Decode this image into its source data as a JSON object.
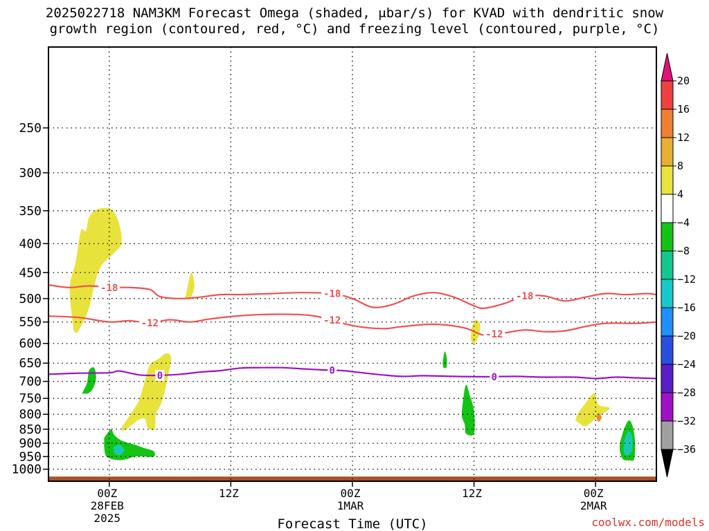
{
  "header": {
    "title_line1": "2025022718 NAM3KM Forecast Omega (shaded, μbar/s) for KVAD with dendritic snow",
    "title_line2": "growth region (contoured, red, °C) and freezing level (contoured, purple, °C)"
  },
  "footer": {
    "credit": "coolwx.com/models"
  },
  "chart_data": {
    "type": "time-height cross section",
    "title": "2025022718 NAM3KM Forecast Omega (shaded, μbar/s) for KVAD with dendritic snow growth region (contoured, red, °C) and freezing level (contoured, purple, °C)",
    "xlabel": "Forecast Time (UTC)",
    "ylabel": "",
    "x_range_hours": [
      -6,
      54
    ],
    "y_range_hpa": [
      1050,
      180
    ],
    "y_scale": "log-pressure",
    "grid": true,
    "x_ticks": [
      {
        "hour": 0,
        "lines": [
          "00Z",
          "28FEB",
          "2025"
        ]
      },
      {
        "hour": 12,
        "lines": [
          "12Z"
        ]
      },
      {
        "hour": 24,
        "lines": [
          "00Z",
          "1MAR"
        ]
      },
      {
        "hour": 36,
        "lines": [
          "12Z"
        ]
      },
      {
        "hour": 48,
        "lines": [
          "00Z",
          "2MAR"
        ]
      }
    ],
    "y_ticks": [
      250,
      300,
      350,
      400,
      450,
      500,
      550,
      600,
      650,
      700,
      750,
      800,
      850,
      900,
      950,
      1000
    ],
    "contours": [
      {
        "name": "-18",
        "color": "#f05050",
        "label": "-18",
        "labels_at_hours": [
          0,
          22,
          41
        ],
        "points": [
          [
            -6,
            473
          ],
          [
            -4,
            478
          ],
          [
            -2,
            475
          ],
          [
            0,
            478
          ],
          [
            2,
            478
          ],
          [
            4,
            482
          ],
          [
            5,
            496
          ],
          [
            7,
            500
          ],
          [
            9,
            497
          ],
          [
            11,
            492
          ],
          [
            13,
            492
          ],
          [
            16,
            490
          ],
          [
            19,
            488
          ],
          [
            22,
            490
          ],
          [
            24,
            500
          ],
          [
            26,
            518
          ],
          [
            28,
            512
          ],
          [
            30,
            495
          ],
          [
            32,
            488
          ],
          [
            34,
            497
          ],
          [
            36,
            515
          ],
          [
            37,
            520
          ],
          [
            39,
            510
          ],
          [
            41,
            495
          ],
          [
            43,
            495
          ],
          [
            45,
            505
          ],
          [
            47,
            497
          ],
          [
            49,
            490
          ],
          [
            51,
            492
          ],
          [
            53,
            490
          ],
          [
            54,
            492
          ]
        ]
      },
      {
        "name": "-12",
        "color": "#f05050",
        "label": "-12",
        "labels_at_hours": [
          4,
          22,
          38
        ],
        "points": [
          [
            -6,
            537
          ],
          [
            -3,
            540
          ],
          [
            0,
            550
          ],
          [
            2,
            547
          ],
          [
            4,
            552
          ],
          [
            6,
            545
          ],
          [
            8,
            550
          ],
          [
            10,
            543
          ],
          [
            13,
            536
          ],
          [
            16,
            533
          ],
          [
            19,
            534
          ],
          [
            21,
            540
          ],
          [
            24,
            558
          ],
          [
            27,
            565
          ],
          [
            29,
            560
          ],
          [
            32,
            555
          ],
          [
            35,
            563
          ],
          [
            37,
            580
          ],
          [
            39,
            575
          ],
          [
            41,
            568
          ],
          [
            43,
            572
          ],
          [
            45,
            570
          ],
          [
            47,
            560
          ],
          [
            49,
            553
          ],
          [
            52,
            553
          ],
          [
            54,
            550
          ]
        ]
      },
      {
        "name": "freezing level",
        "color": "#9a12c8",
        "label": "0",
        "labels_at_hours": [
          5,
          22,
          38
        ],
        "points": [
          [
            -6,
            680
          ],
          [
            -3,
            677
          ],
          [
            0,
            676
          ],
          [
            1,
            671
          ],
          [
            3,
            682
          ],
          [
            5,
            683
          ],
          [
            7,
            680
          ],
          [
            9,
            674
          ],
          [
            11,
            670
          ],
          [
            13,
            663
          ],
          [
            15,
            662
          ],
          [
            17,
            662
          ],
          [
            19,
            665
          ],
          [
            21,
            668
          ],
          [
            23,
            670
          ],
          [
            25,
            676
          ],
          [
            27,
            682
          ],
          [
            29,
            686
          ],
          [
            31,
            684
          ],
          [
            34,
            686
          ],
          [
            37,
            687
          ],
          [
            40,
            686
          ],
          [
            43,
            688
          ],
          [
            46,
            688
          ],
          [
            48,
            692
          ],
          [
            50,
            688
          ],
          [
            52,
            690
          ],
          [
            54,
            692
          ]
        ]
      }
    ],
    "shaded_regions": [
      {
        "color": "#e8e23c",
        "points": [
          [
            -3.5,
            570
          ],
          [
            -3.9,
            480
          ],
          [
            -3.3,
            430
          ],
          [
            -2.8,
            380
          ],
          [
            -2.3,
            380
          ],
          [
            -2,
            360
          ],
          [
            -1.2,
            348
          ],
          [
            0.2,
            348
          ],
          [
            1,
            370
          ],
          [
            1.2,
            400
          ],
          [
            0.5,
            415
          ],
          [
            -1,
            445
          ],
          [
            -2,
            520
          ],
          [
            -2.8,
            560
          ],
          [
            -3.2,
            575
          ]
        ]
      },
      {
        "color": "#e8e23c",
        "points": [
          [
            7.5,
            500
          ],
          [
            7.8,
            470
          ],
          [
            8.1,
            450
          ],
          [
            8.4,
            475
          ],
          [
            8.0,
            500
          ]
        ]
      },
      {
        "color": "#e8e23c",
        "points": [
          [
            1.2,
            845
          ],
          [
            2.5,
            780
          ],
          [
            3.0,
            750
          ],
          [
            3.5,
            700
          ],
          [
            4.0,
            655
          ],
          [
            4.8,
            640
          ],
          [
            5.6,
            625
          ],
          [
            6.1,
            635
          ],
          [
            5.8,
            685
          ],
          [
            5.2,
            760
          ],
          [
            4.6,
            800
          ],
          [
            4.5,
            850
          ],
          [
            3.8,
            845
          ],
          [
            3.5,
            815
          ],
          [
            2.8,
            820
          ],
          [
            1.5,
            855
          ]
        ]
      },
      {
        "color": "#e8e23c",
        "points": [
          [
            35.8,
            560
          ],
          [
            36.2,
            545
          ],
          [
            36.6,
            555
          ],
          [
            36.5,
            580
          ],
          [
            36.0,
            600
          ],
          [
            35.7,
            590
          ]
        ]
      },
      {
        "color": "#e8e23c",
        "points": [
          [
            46.0,
            820
          ],
          [
            46.3,
            795
          ],
          [
            47.0,
            765
          ],
          [
            47.7,
            737
          ],
          [
            48.0,
            740
          ],
          [
            48.3,
            770
          ],
          [
            49.4,
            780
          ],
          [
            48.6,
            800
          ],
          [
            47.8,
            820
          ],
          [
            47.0,
            840
          ],
          [
            46.4,
            830
          ]
        ]
      },
      {
        "color": "#f08a28",
        "points": [
          [
            48.3,
            795
          ],
          [
            48.6,
            810
          ],
          [
            48.3,
            825
          ],
          [
            48.1,
            810
          ]
        ]
      },
      {
        "color": "#13c413",
        "points": [
          [
            -2.7,
            735
          ],
          [
            -2.2,
            705
          ],
          [
            -2.0,
            670
          ],
          [
            -1.5,
            662
          ],
          [
            -1.3,
            690
          ],
          [
            -1.6,
            720
          ],
          [
            -2.1,
            735
          ]
        ]
      },
      {
        "color": "#13c413",
        "points": [
          [
            -0.5,
            880
          ],
          [
            -0.2,
            865
          ],
          [
            0.2,
            850
          ],
          [
            0.5,
            870
          ],
          [
            1.2,
            890
          ],
          [
            2.5,
            905
          ],
          [
            3.5,
            918
          ],
          [
            4.4,
            930
          ],
          [
            4.4,
            950
          ],
          [
            3.5,
            950
          ],
          [
            2.5,
            950
          ],
          [
            1.5,
            962
          ],
          [
            0.5,
            962
          ],
          [
            -0.3,
            948
          ],
          [
            -0.5,
            915
          ]
        ]
      },
      {
        "color": "#13c413",
        "points": [
          [
            32.9,
            650
          ],
          [
            33.1,
            620
          ],
          [
            33.3,
            635
          ],
          [
            33.3,
            660
          ],
          [
            33.0,
            662
          ]
        ]
      },
      {
        "color": "#13c413",
        "points": [
          [
            34.9,
            760
          ],
          [
            35.2,
            710
          ],
          [
            35.6,
            742
          ],
          [
            36.0,
            790
          ],
          [
            36.0,
            865
          ],
          [
            35.2,
            865
          ],
          [
            35.1,
            835
          ],
          [
            34.8,
            805
          ]
        ]
      },
      {
        "color": "#13c413",
        "points": [
          [
            50.4,
            900
          ],
          [
            50.8,
            850
          ],
          [
            51.3,
            820
          ],
          [
            51.7,
            845
          ],
          [
            51.9,
            900
          ],
          [
            51.8,
            960
          ],
          [
            51.3,
            965
          ],
          [
            50.7,
            960
          ],
          [
            50.4,
            930
          ]
        ]
      },
      {
        "color": "#17c9b5",
        "points": [
          [
            0.4,
            915
          ],
          [
            1.0,
            905
          ],
          [
            1.5,
            925
          ],
          [
            1.0,
            945
          ],
          [
            0.5,
            935
          ]
        ]
      },
      {
        "color": "#17c9b5",
        "points": [
          [
            50.8,
            895
          ],
          [
            51.2,
            858
          ],
          [
            51.6,
            875
          ],
          [
            51.6,
            925
          ],
          [
            51.2,
            945
          ],
          [
            50.8,
            935
          ]
        ]
      }
    ],
    "terrain_fill": {
      "color": "#a8522a",
      "top_hpa": 1030
    },
    "colorbar": {
      "tick_labels": [
        "20",
        "16",
        "12",
        "8",
        "4",
        "−4",
        "−8",
        "−12",
        "−16",
        "−20",
        "−24",
        "−28",
        "−32",
        "−36"
      ],
      "bins": [
        {
          "from": 16,
          "to": 20,
          "color": "#f04040"
        },
        {
          "from": 12,
          "to": 16,
          "color": "#f08030"
        },
        {
          "from": 8,
          "to": 12,
          "color": "#e8b030"
        },
        {
          "from": 4,
          "to": 8,
          "color": "#e8e23c"
        },
        {
          "from": -4,
          "to": 4,
          "color": "#ffffff"
        },
        {
          "from": -8,
          "to": -4,
          "color": "#13c413"
        },
        {
          "from": -12,
          "to": -8,
          "color": "#12c88e"
        },
        {
          "from": -16,
          "to": -12,
          "color": "#17c9c9"
        },
        {
          "from": -20,
          "to": -16,
          "color": "#1e90ff"
        },
        {
          "from": -24,
          "to": -20,
          "color": "#2850e0"
        },
        {
          "from": -28,
          "to": -24,
          "color": "#5a1ec8"
        },
        {
          "from": -32,
          "to": -28,
          "color": "#a012c8"
        },
        {
          "from": -36,
          "to": -32,
          "color": "#a0a0a0"
        }
      ],
      "top_arrow_color": "#e0127a",
      "bottom_arrow_color": "#000000"
    }
  }
}
